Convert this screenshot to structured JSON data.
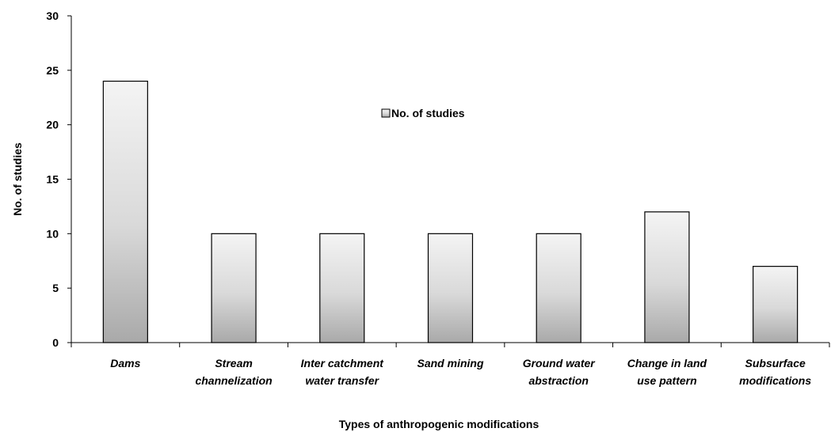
{
  "chart_data": {
    "type": "bar",
    "categories": [
      [
        "Dams"
      ],
      [
        "Stream",
        "channelization"
      ],
      [
        "Inter catchment",
        "water transfer"
      ],
      [
        "Sand mining"
      ],
      [
        "Ground water",
        "abstraction"
      ],
      [
        "Change in land",
        "use pattern"
      ],
      [
        "Subsurface",
        "modifications"
      ]
    ],
    "series": [
      {
        "name": "No. of studies",
        "values": [
          24,
          10,
          10,
          10,
          10,
          12,
          7
        ]
      }
    ],
    "title": "",
    "xlabel": "Types of anthropogenic modifications",
    "ylabel": "No. of studies",
    "ylim": [
      0,
      30
    ],
    "yticks": [
      0,
      5,
      10,
      15,
      20,
      25,
      30
    ],
    "grid": false,
    "legend_position": "top-center-right",
    "bar_fill": "gradient-gray",
    "colors": {
      "bar_light": "#f4f4f4",
      "bar_dark": "#a9a9a9",
      "stroke": "#000000"
    }
  }
}
